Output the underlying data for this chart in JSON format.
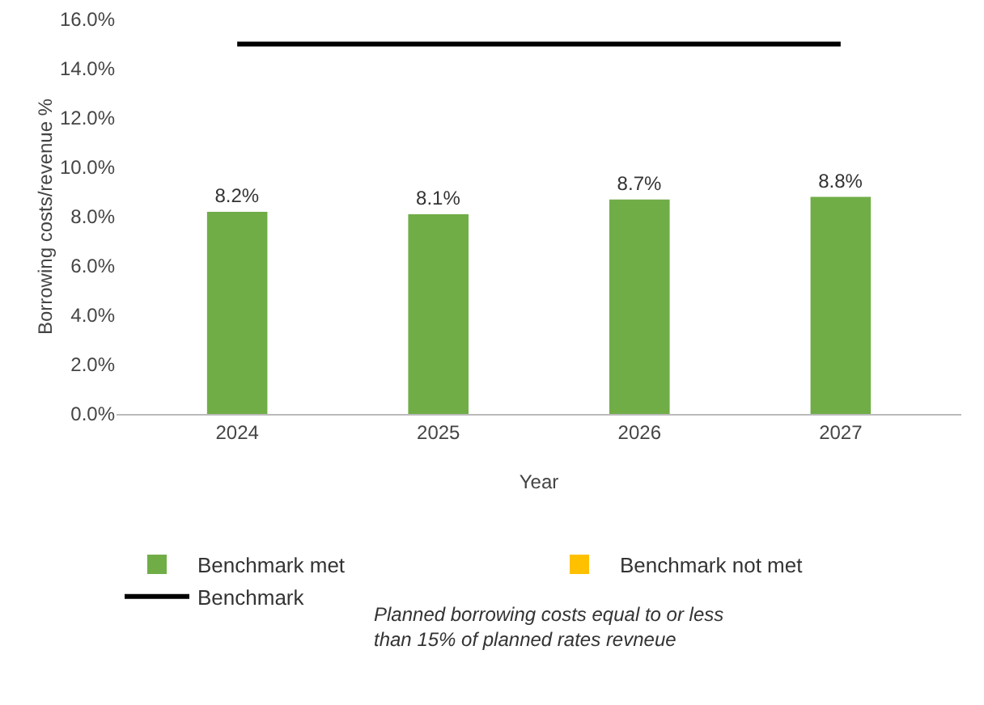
{
  "chart_data": {
    "type": "bar",
    "xlabel": "Year",
    "ylabel": "Borrowing costs/revenue %",
    "categories": [
      "2024",
      "2025",
      "2026",
      "2027"
    ],
    "series": [
      {
        "name": "Benchmark met",
        "color": "#70ad47",
        "values": [
          8.2,
          8.1,
          8.7,
          8.8
        ],
        "value_labels": [
          "8.2%",
          "8.1%",
          "8.7%",
          "8.8%"
        ]
      },
      {
        "name": "Benchmark not met",
        "color": "#ffc000",
        "values": [
          null,
          null,
          null,
          null
        ]
      },
      {
        "name": "Benchmark",
        "type": "line",
        "color": "#000000",
        "values": [
          15,
          15,
          15,
          15
        ]
      }
    ],
    "ylim": [
      0,
      16
    ],
    "yticks": [
      {
        "value": 0,
        "label": "0.0%"
      },
      {
        "value": 2,
        "label": "2.0%"
      },
      {
        "value": 4,
        "label": "4.0%"
      },
      {
        "value": 6,
        "label": "6.0%"
      },
      {
        "value": 8,
        "label": "8.0%"
      },
      {
        "value": 10,
        "label": "10.0%"
      },
      {
        "value": 12,
        "label": "12.0%"
      },
      {
        "value": 14,
        "label": "14.0%"
      },
      {
        "value": 16,
        "label": "16.0%"
      }
    ],
    "annotations": [
      "Planned borrowing costs equal to or less than 15% of planned rates revneue"
    ],
    "grid": false,
    "legend": "bottom",
    "marker": "none"
  }
}
